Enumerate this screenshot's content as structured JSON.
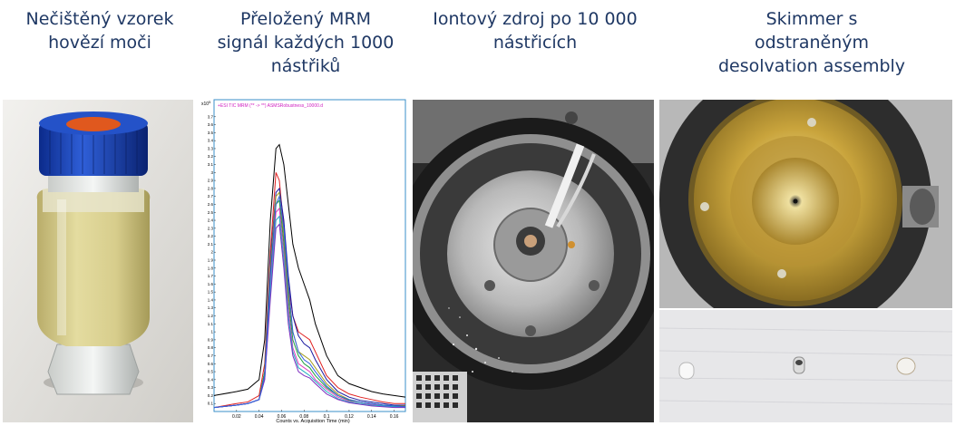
{
  "captions": {
    "urine": "Nečištěný vzorek\nhovězí moči",
    "mrm": "Přeložený MRM\nsignál každých 1000\nnástřiků",
    "source": "Iontový zdroj po 10 000\nnástřicích",
    "skimmer": "Skimmer s\nodstraněným\ndesolvation assembly"
  },
  "chart_data": {
    "type": "line",
    "title": "+ESI TIC MRM (** -> **) ASMSRobustness_10000.d",
    "y_multiplier_label": "x10",
    "y_multiplier_exp": "5",
    "xlabel": "Counts vs. Acquisition Time (min)",
    "ylabel": "",
    "xlim": [
      0.0,
      0.17
    ],
    "ylim": [
      0.0,
      3.8
    ],
    "x_ticks": [
      "0.02",
      "0.04",
      "0.06",
      "0.08",
      "0.1",
      "0.12",
      "0.14",
      "0.16"
    ],
    "y_ticks": [
      "0.1",
      "0.2",
      "0.3",
      "0.4",
      "0.5",
      "0.6",
      "0.7",
      "0.8",
      "0.9",
      "1",
      "1.1",
      "1.2",
      "1.3",
      "1.4",
      "1.5",
      "1.6",
      "1.7",
      "1.8",
      "1.9",
      "2",
      "2.1",
      "2.2",
      "2.3",
      "2.4",
      "2.5",
      "2.6",
      "2.7",
      "2.8",
      "2.9",
      "3",
      "3.1",
      "3.2",
      "3.3",
      "3.4",
      "3.5",
      "3.6",
      "3.7"
    ],
    "x": [
      0.0,
      0.02,
      0.03,
      0.04,
      0.045,
      0.05,
      0.055,
      0.058,
      0.062,
      0.066,
      0.07,
      0.075,
      0.08,
      0.085,
      0.09,
      0.1,
      0.11,
      0.12,
      0.13,
      0.14,
      0.15,
      0.16,
      0.17
    ],
    "series": [
      {
        "color": "#000000",
        "values": [
          0.2,
          0.25,
          0.28,
          0.4,
          0.9,
          2.4,
          3.3,
          3.35,
          3.1,
          2.6,
          2.1,
          1.8,
          1.6,
          1.4,
          1.1,
          0.7,
          0.45,
          0.35,
          0.3,
          0.25,
          0.22,
          0.2,
          0.18
        ]
      },
      {
        "color": "#e02020",
        "values": [
          0.05,
          0.1,
          0.12,
          0.2,
          0.6,
          2.0,
          3.0,
          2.9,
          2.3,
          1.6,
          1.2,
          1.0,
          0.95,
          0.9,
          0.75,
          0.45,
          0.3,
          0.22,
          0.18,
          0.15,
          0.12,
          0.1,
          0.1
        ]
      },
      {
        "color": "#1a1aa0",
        "values": [
          0.05,
          0.08,
          0.1,
          0.15,
          0.5,
          1.9,
          2.75,
          2.8,
          2.4,
          1.7,
          1.2,
          0.95,
          0.85,
          0.8,
          0.65,
          0.4,
          0.25,
          0.18,
          0.14,
          0.12,
          0.1,
          0.08,
          0.08
        ]
      },
      {
        "color": "#a8a020",
        "values": [
          0.05,
          0.08,
          0.1,
          0.15,
          0.5,
          1.8,
          2.7,
          2.75,
          2.2,
          1.5,
          1.0,
          0.75,
          0.7,
          0.65,
          0.55,
          0.35,
          0.22,
          0.15,
          0.12,
          0.1,
          0.08,
          0.07,
          0.07
        ]
      },
      {
        "color": "#20a040",
        "values": [
          0.05,
          0.08,
          0.1,
          0.15,
          0.5,
          1.7,
          2.6,
          2.65,
          2.1,
          1.4,
          0.9,
          0.7,
          0.6,
          0.55,
          0.45,
          0.3,
          0.2,
          0.14,
          0.12,
          0.1,
          0.08,
          0.07,
          0.06
        ]
      },
      {
        "color": "#e040c0",
        "values": [
          0.05,
          0.08,
          0.1,
          0.15,
          0.45,
          1.6,
          2.5,
          2.55,
          2.0,
          1.3,
          0.8,
          0.6,
          0.55,
          0.5,
          0.4,
          0.28,
          0.18,
          0.13,
          0.1,
          0.09,
          0.07,
          0.06,
          0.06
        ]
      },
      {
        "color": "#20b0c0",
        "values": [
          0.05,
          0.08,
          0.1,
          0.15,
          0.4,
          1.5,
          2.4,
          2.45,
          1.9,
          1.2,
          0.75,
          0.55,
          0.5,
          0.45,
          0.38,
          0.25,
          0.16,
          0.12,
          0.1,
          0.08,
          0.07,
          0.06,
          0.05
        ]
      },
      {
        "color": "#8030c0",
        "values": [
          0.05,
          0.08,
          0.1,
          0.15,
          0.4,
          1.4,
          2.3,
          2.35,
          1.8,
          1.1,
          0.7,
          0.5,
          0.45,
          0.42,
          0.35,
          0.22,
          0.15,
          0.11,
          0.09,
          0.07,
          0.06,
          0.05,
          0.05
        ]
      },
      {
        "color": "#3060e0",
        "values": [
          0.05,
          0.08,
          0.1,
          0.15,
          0.45,
          1.7,
          2.6,
          2.7,
          2.3,
          1.6,
          1.0,
          0.75,
          0.65,
          0.6,
          0.5,
          0.32,
          0.2,
          0.15,
          0.12,
          0.1,
          0.08,
          0.07,
          0.06
        ]
      }
    ]
  }
}
